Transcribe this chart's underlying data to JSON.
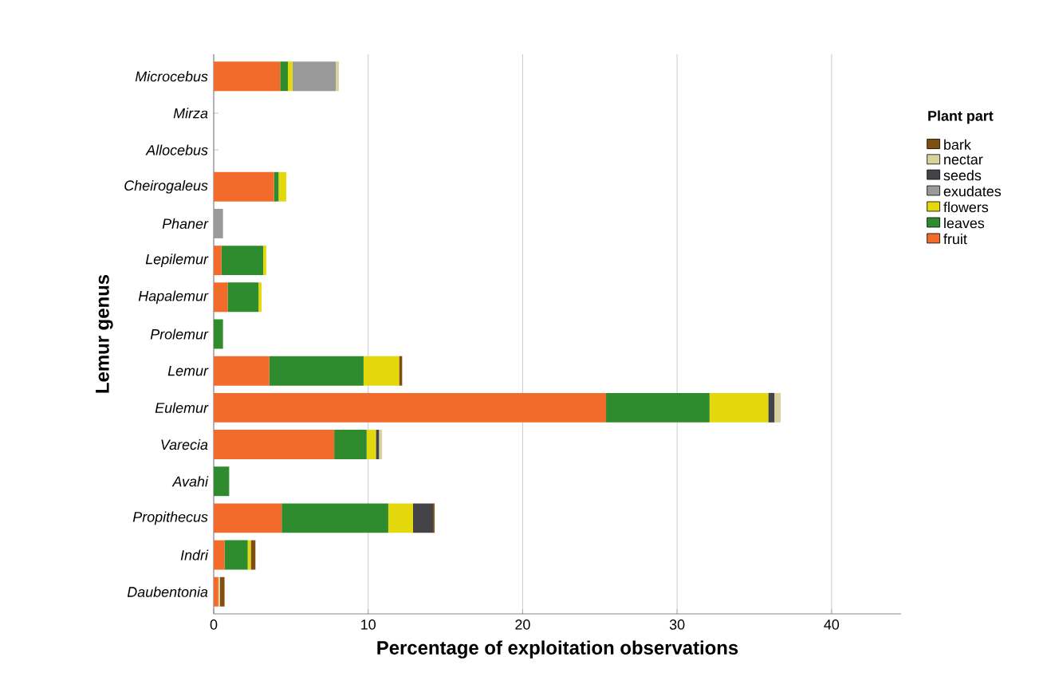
{
  "chart_data": {
    "type": "bar",
    "orientation": "horizontal",
    "stacked": true,
    "xlabel": "Percentage of exploitation observations",
    "ylabel": "Lemur genus",
    "legend_title": "Plant part",
    "categories": [
      "Microcebus",
      "Mirza",
      "Allocebus",
      "Cheirogaleus",
      "Phaner",
      "Lepilemur",
      "Hapalemur",
      "Prolemur",
      "Lemur",
      "Eulemur",
      "Varecia",
      "Avahi",
      "Propithecus",
      "Indri",
      "Daubentonia"
    ],
    "series": [
      {
        "name": "fruit",
        "color": "#f26b2a",
        "values": [
          4.3,
          null,
          null,
          3.9,
          null,
          0.5,
          0.9,
          null,
          3.6,
          25.4,
          7.8,
          null,
          4.4,
          0.7,
          0.3
        ]
      },
      {
        "name": "leaves",
        "color": "#2e8b2e",
        "values": [
          0.5,
          null,
          null,
          0.3,
          null,
          2.7,
          2.0,
          0.6,
          6.1,
          6.7,
          2.1,
          1.0,
          6.9,
          1.5,
          null
        ]
      },
      {
        "name": "flowers",
        "color": "#e3d80c",
        "values": [
          0.3,
          null,
          null,
          0.5,
          null,
          0.2,
          0.2,
          null,
          2.3,
          3.8,
          0.6,
          null,
          1.6,
          0.2,
          null
        ]
      },
      {
        "name": "exudates",
        "color": "#9a9a9a",
        "values": [
          2.8,
          null,
          null,
          null,
          0.6,
          null,
          null,
          null,
          null,
          null,
          null,
          null,
          null,
          null,
          null
        ]
      },
      {
        "name": "seeds",
        "color": "#444448",
        "values": [
          null,
          null,
          null,
          null,
          null,
          null,
          null,
          null,
          null,
          0.4,
          0.2,
          null,
          1.3,
          null,
          null
        ]
      },
      {
        "name": "nectar",
        "color": "#d9d29c",
        "values": [
          0.2,
          null,
          null,
          null,
          null,
          null,
          null,
          null,
          null,
          0.4,
          0.2,
          null,
          null,
          null,
          0.1
        ]
      },
      {
        "name": "bark",
        "color": "#7f4f10",
        "values": [
          null,
          null,
          null,
          null,
          null,
          null,
          null,
          null,
          0.2,
          null,
          null,
          null,
          0.1,
          0.3,
          0.3
        ]
      }
    ],
    "xlim": [
      0,
      44.5
    ],
    "xticks": [
      0,
      10,
      20,
      30,
      40
    ],
    "grid": "x",
    "legend": "right"
  }
}
